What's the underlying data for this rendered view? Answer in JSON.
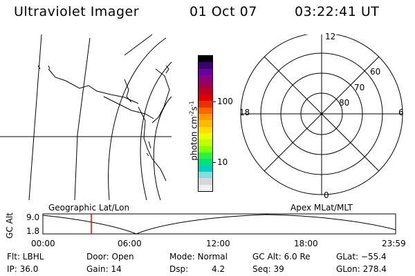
{
  "header": {
    "title": "Ultraviolet Imager",
    "date": "01 Oct 07",
    "time": "03:22:41 UT"
  },
  "colorbar": {
    "label": "photon cm",
    "sup1": "-2",
    "mid": "s",
    "sup2": "-1",
    "tick_100": "100",
    "tick_10": "10",
    "colors_top_to_bottom": [
      "#000000",
      "#3a0070",
      "#6a00a0",
      "#8a0080",
      "#a00050",
      "#c00020",
      "#dd0000",
      "#ee3000",
      "#ff6600",
      "#ff9900",
      "#ffbb00",
      "#ffdd00",
      "#f0ff00",
      "#c0ff00",
      "#80ff00",
      "#30f040",
      "#00e080",
      "#00d0c0",
      "#80e0e0",
      "#d8d8d8",
      "#f0f0f0"
    ]
  },
  "polar": {
    "mlt_12": "12",
    "mlt_18": "18",
    "mlt_6": "6",
    "mlt_0": "0",
    "lat_60": "60",
    "lat_70": "70",
    "lat_80": "80"
  },
  "track": {
    "label_left": "Geographic Lat/Lon",
    "label_right": "Apex MLat/MLT",
    "ylabel": "GC Alt",
    "ytick_top": "9.0",
    "ytick_bottom": "1.8",
    "xticks": [
      "00:00",
      "06:00",
      "12:00",
      "18:00",
      "23:59"
    ],
    "marker_color": "#ee0000"
  },
  "info": {
    "flt": "Flt: LBHL",
    "ip": "IP: 36.0",
    "door": "Door: Open",
    "gain": "Gain: 14",
    "mode": "Mode: Normal",
    "dsp_label": "Dsp:",
    "dsp_value": "4.2",
    "gcalt": "GC Alt: 6.0 Re",
    "seq": "Seq: 39",
    "glat": "GLat: −55.4",
    "glon": "GLon: 278.4"
  }
}
